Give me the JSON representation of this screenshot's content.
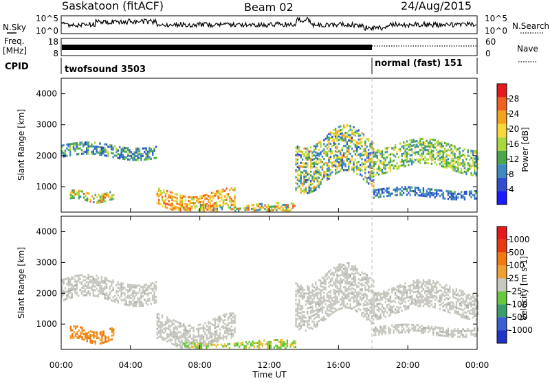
{
  "header": {
    "station_title": "Saskatoon (fitACF)",
    "beam_label": "Beam 02",
    "date_label": "24/Aug/2015"
  },
  "noise_panel": {
    "left_label": "N.Sky",
    "right_label": "N.Search",
    "left_ticks": [
      "10^5",
      "10^0"
    ],
    "right_ticks": [
      "10^5",
      "10^0"
    ]
  },
  "freq_panel": {
    "left_label_line1": "Freq.",
    "left_label_line2": "[MHz]",
    "right_label": "Nave",
    "left_ticks": [
      "18",
      "8"
    ],
    "right_ticks": [
      "60",
      "0"
    ]
  },
  "cpid_panel": {
    "label": "CPID",
    "segments": [
      {
        "text": "twofsound 3503",
        "start_hour": 0
      },
      {
        "text": "normal (fast) 151",
        "start_hour": 18
      }
    ]
  },
  "chart_data": [
    {
      "type": "heatmap",
      "name": "power",
      "ylabel": "Slant Range [km]",
      "yticks": [
        "4000",
        "3000",
        "2000",
        "1000"
      ],
      "ylim": [
        180,
        4500
      ],
      "xlim": [
        0,
        24
      ],
      "colorbar": {
        "label": "Power [dB]",
        "tick_labels": [
          "28",
          "24",
          "20",
          "16",
          "12",
          "8",
          "4"
        ],
        "range": [
          0,
          32
        ],
        "colors": [
          "#1a1aff",
          "#2f4fd0",
          "#3f8ac0",
          "#4aa84a",
          "#a8d83c",
          "#f7d93c",
          "#f5a31f",
          "#f06020",
          "#e41a1c"
        ]
      },
      "features": [
        {
          "hours": [
            0.0,
            5.5
          ],
          "range_km": [
            2000,
            2400
          ],
          "power_db": "4-16"
        },
        {
          "hours": [
            0.5,
            3.0
          ],
          "range_km": [
            600,
            900
          ],
          "power_db": "8-28"
        },
        {
          "hours": [
            5.5,
            10.0
          ],
          "range_km": [
            300,
            900
          ],
          "power_db": "16-28"
        },
        {
          "hours": [
            8.0,
            13.5
          ],
          "range_km": [
            200,
            500
          ],
          "power_db": "8-28"
        },
        {
          "hours": [
            13.5,
            18.0
          ],
          "range_km": [
            1200,
            2700
          ],
          "power_db": "4-24"
        },
        {
          "hours": [
            18.0,
            24.0
          ],
          "range_km": [
            1600,
            2400
          ],
          "power_db": "8-20"
        },
        {
          "hours": [
            18.0,
            24.0
          ],
          "range_km": [
            700,
            1000
          ],
          "power_db": "4-12"
        }
      ]
    },
    {
      "type": "heatmap",
      "name": "velocity",
      "ylabel": "Slant Range [km]",
      "yticks": [
        "4000",
        "3000",
        "2000",
        "1000"
      ],
      "ylim": [
        180,
        4500
      ],
      "xlim": [
        0,
        24
      ],
      "xticks": [
        "00:00",
        "04:00",
        "08:00",
        "12:00",
        "16:00",
        "20:00",
        "00:00"
      ],
      "xlabel": "Time UT",
      "colorbar": {
        "label": "Velocity [m s-1]",
        "tick_labels": [
          "1000",
          "500",
          "100",
          "25",
          "-25",
          "-100",
          "-500",
          "-1000"
        ],
        "colors": [
          "#2032c8",
          "#3a5fd0",
          "#3a9e6a",
          "#66c83a",
          "#c8c8c0",
          "#f0a030",
          "#f07a10",
          "#e83a10",
          "#e41a1c"
        ]
      },
      "features": [
        {
          "hours": [
            0.0,
            5.5
          ],
          "range_km": [
            1800,
            2500
          ],
          "velocity": "ground scatter"
        },
        {
          "hours": [
            0.5,
            3.0
          ],
          "range_km": [
            500,
            900
          ],
          "velocity": "-100 to -500"
        },
        {
          "hours": [
            5.5,
            10.0
          ],
          "range_km": [
            400,
            1200
          ],
          "velocity": "ground scatter"
        },
        {
          "hours": [
            7.0,
            13.5
          ],
          "range_km": [
            200,
            500
          ],
          "velocity": "25 to 100"
        },
        {
          "hours": [
            13.5,
            18.0
          ],
          "range_km": [
            1200,
            2700
          ],
          "velocity": "ground scatter"
        },
        {
          "hours": [
            18.0,
            24.0
          ],
          "range_km": [
            1400,
            2300
          ],
          "velocity": "ground scatter"
        },
        {
          "hours": [
            18.0,
            24.0
          ],
          "range_km": [
            700,
            1000
          ],
          "velocity": "ground scatter"
        }
      ]
    }
  ]
}
